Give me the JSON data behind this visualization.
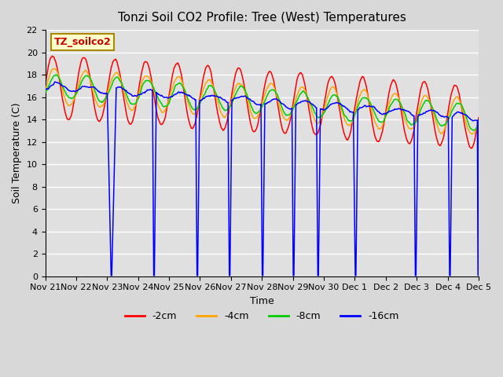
{
  "title": "Tonzi Soil CO2 Profile: Tree (West) Temperatures",
  "xlabel": "Time",
  "ylabel": "Soil Temperature (C)",
  "ylim": [
    0,
    22
  ],
  "yticks": [
    0,
    2,
    4,
    6,
    8,
    10,
    12,
    14,
    16,
    18,
    20,
    22
  ],
  "legend_label": "TZ_soilco2",
  "series_labels": [
    "-2cm",
    "-4cm",
    "-8cm",
    "-16cm"
  ],
  "series_colors": [
    "#ff0000",
    "#ffa500",
    "#00cc00",
    "#0000ff"
  ],
  "bg_color": "#e0e0e0",
  "grid_color": "#ffffff",
  "xtick_labels": [
    "Nov 21",
    "Nov 22",
    "Nov 23",
    "Nov 24",
    "Nov 25",
    "Nov 26",
    "Nov 27",
    "Nov 28",
    "Nov 29",
    "Nov 30",
    "Dec 1",
    "Dec 2",
    "Dec 3",
    "Dec 4",
    "Dec 5"
  ],
  "xtick_positions": [
    0,
    1,
    2,
    3,
    4,
    5,
    6,
    7,
    8,
    9,
    10,
    11,
    12,
    13,
    14
  ],
  "xlim": [
    0,
    14
  ],
  "drop_events": [
    [
      2.0,
      2.3
    ],
    [
      3.45,
      3.6
    ],
    [
      4.85,
      5.0
    ],
    [
      5.9,
      6.05
    ],
    [
      6.95,
      7.1
    ],
    [
      7.95,
      8.1
    ],
    [
      8.75,
      8.9
    ],
    [
      9.95,
      10.1
    ],
    [
      11.9,
      12.05
    ],
    [
      13.0,
      13.15
    ],
    [
      13.95,
      14.1
    ]
  ]
}
